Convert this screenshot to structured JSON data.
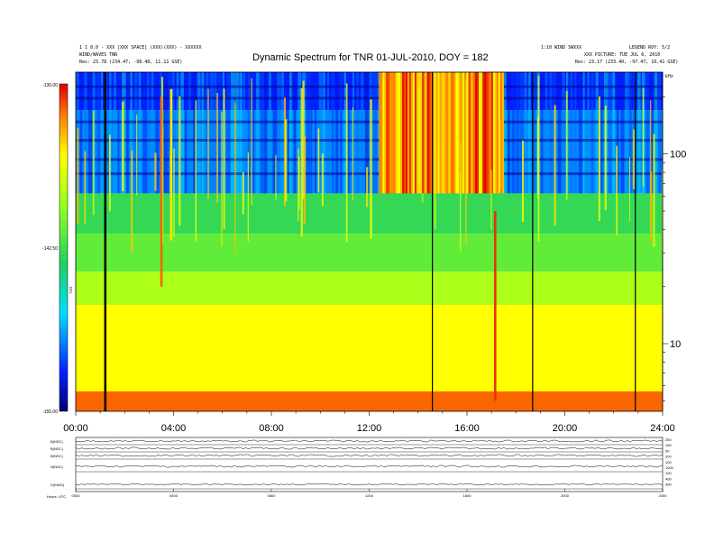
{
  "chart_data": {
    "type": "heatmap",
    "title": "Dynamic Spectrum for TNR 01-JUL-2010, DOY = 182",
    "header_left": [
      "1 1 0.0 - XXX [XXX SPACE] (XXX)(XXX) - XXXXXX",
      "WIND/WAVES TNR",
      "Res:   23.78 (234.47, -98.48, 11.11 GSE)"
    ],
    "header_right": [
      "1:10 WIND SWXXX",
      "LEGEND ROY: 5/2",
      "XXX PICTURE: TUE JUL 6, 2010",
      "Res:   23.17 (233.40, -97.47, 10.41 GSE)"
    ],
    "x_axis": {
      "ticks": [
        "00:00",
        "04:00",
        "08:00",
        "12:00",
        "16:00",
        "20:00",
        "24:00"
      ],
      "range_hours": [
        0,
        24
      ]
    },
    "y_axis_right": {
      "ticks": [
        {
          "label": "100",
          "value": 100
        },
        {
          "label": "10",
          "value": 10
        }
      ],
      "unit": "kHz",
      "scale": "log"
    },
    "colorbar": {
      "ticks": [
        "-130.00",
        "-142.50",
        "-155.00"
      ],
      "label": "TNR",
      "range": [
        -155,
        -130
      ]
    },
    "bands_kHz": [
      {
        "from": 170,
        "to": 270,
        "intensity": 0.12
      },
      {
        "from": 62,
        "to": 170,
        "intensity": 0.22
      },
      {
        "from": 38,
        "to": 62,
        "intensity": 0.48
      },
      {
        "from": 24,
        "to": 38,
        "intensity": 0.55
      },
      {
        "from": 16,
        "to": 24,
        "intensity": 0.66
      },
      {
        "from": 5.6,
        "to": 16,
        "intensity": 0.78
      },
      {
        "from": 4.4,
        "to": 5.6,
        "intensity": 0.92
      }
    ],
    "burst_region": {
      "from_hour": 12.4,
      "to_hour": 17.5,
      "from_kHz": 62,
      "to_kHz": 270
    },
    "data_gaps_hours": [
      1.2,
      14.6,
      18.7,
      22.9
    ],
    "bursts": [
      {
        "hour": 3.5,
        "from_kHz": 20,
        "to_kHz": 200,
        "intensity": 0.92
      },
      {
        "hour": 3.9,
        "from_kHz": 35,
        "to_kHz": 220,
        "intensity": 0.8
      },
      {
        "hour": 14.2,
        "from_kHz": 62,
        "to_kHz": 270,
        "intensity": 0.95
      },
      {
        "hour": 16.1,
        "from_kHz": 62,
        "to_kHz": 270,
        "intensity": 0.95
      },
      {
        "hour": 17.15,
        "from_kHz": 5,
        "to_kHz": 50,
        "intensity": 0.96
      }
    ],
    "bottom_panels": {
      "row_labels": [
        "B(NSC)",
        "B(NSC)",
        "B(NSC)",
        "N(NSC)",
        "V(KM/S)"
      ],
      "right_ticks": [
        "250",
        "150",
        "50",
        "200",
        "100",
        "1000",
        "100",
        "400",
        "300"
      ],
      "x_ticks": [
        "0000",
        "0400",
        "0800",
        "1200",
        "1600",
        "2000",
        "2400"
      ],
      "axis_label": "Hours:   UTC"
    }
  }
}
